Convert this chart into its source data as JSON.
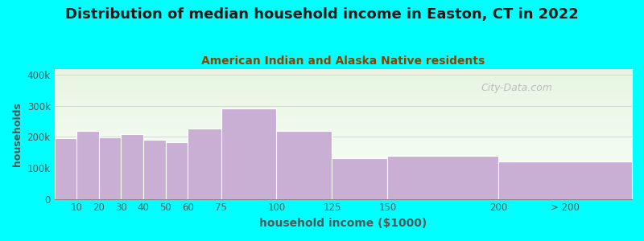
{
  "title": "Distribution of median household income in Easton, CT in 2022",
  "subtitle": "American Indian and Alaska Native residents",
  "xlabel": "household income ($1000)",
  "ylabel": "households",
  "bar_labels": [
    "10",
    "20",
    "30",
    "40",
    "50",
    "60",
    "75",
    "100",
    "125",
    "150",
    "200",
    "> 200"
  ],
  "bar_lefts": [
    0,
    10,
    20,
    30,
    40,
    50,
    60,
    75,
    100,
    125,
    150,
    200
  ],
  "bar_widths": [
    10,
    10,
    10,
    10,
    10,
    10,
    15,
    25,
    25,
    25,
    50,
    60
  ],
  "bar_values": [
    195000,
    220000,
    198000,
    210000,
    190000,
    182000,
    228000,
    293000,
    220000,
    132000,
    140000,
    120000
  ],
  "bar_color": "#c9afd4",
  "bar_edgecolor": "#ffffff",
  "background_color": "#00ffff",
  "plot_bg_top": "#e8f5e2",
  "plot_bg_bottom": "#f8fff8",
  "title_color": "#1a1a1a",
  "subtitle_color": "#884400",
  "axis_color": "#555555",
  "ylim": [
    0,
    420000
  ],
  "xlim": [
    0,
    260
  ],
  "yticks": [
    0,
    100000,
    200000,
    300000,
    400000
  ],
  "ytick_labels": [
    "0",
    "100k",
    "200k",
    "300k",
    "400k"
  ],
  "xtick_positions": [
    10,
    20,
    30,
    40,
    50,
    60,
    75,
    100,
    125,
    150,
    200,
    230
  ],
  "xtick_labels": [
    "10",
    "20",
    "30",
    "40",
    "50",
    "60",
    "75",
    "100",
    "125",
    "150",
    "200",
    "> 200"
  ],
  "watermark_text": "City-Data.com",
  "title_fontsize": 13,
  "subtitle_fontsize": 10,
  "xlabel_fontsize": 10,
  "ylabel_fontsize": 9
}
